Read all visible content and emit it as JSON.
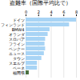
{
  "chart_data": {
    "type": "bar",
    "orientation": "horizontal",
    "title": "盗難率（国際平均比で）",
    "categories": [
      "ドイツ",
      "フィンランド",
      "BMW4",
      "オランダ",
      "スロバア",
      "フライン",
      "ベンクー",
      "ニュース",
      "タウン",
      "スエルプ",
      "ベーネ",
      "福岡県"
    ],
    "values": [
      8.0,
      6.9,
      3.8,
      3.5,
      3.1,
      3.0,
      3.1,
      2.9,
      2.5,
      1.8,
      1.8,
      0.5
    ],
    "colors": [
      "#a8d4f5",
      "#a8d4f5",
      "#a8d4f5",
      "#a8d4f5",
      "#a8d4f5",
      "#a8d4f5",
      "#a8d4f5",
      "#a8d4f5",
      "#a8d4f5",
      "#a8d4f5",
      "#a8d4f5",
      "#4a7040"
    ],
    "xlim": [
      0,
      8
    ],
    "xticks": [
      0,
      2,
      4,
      6,
      8
    ],
    "grid": true
  }
}
